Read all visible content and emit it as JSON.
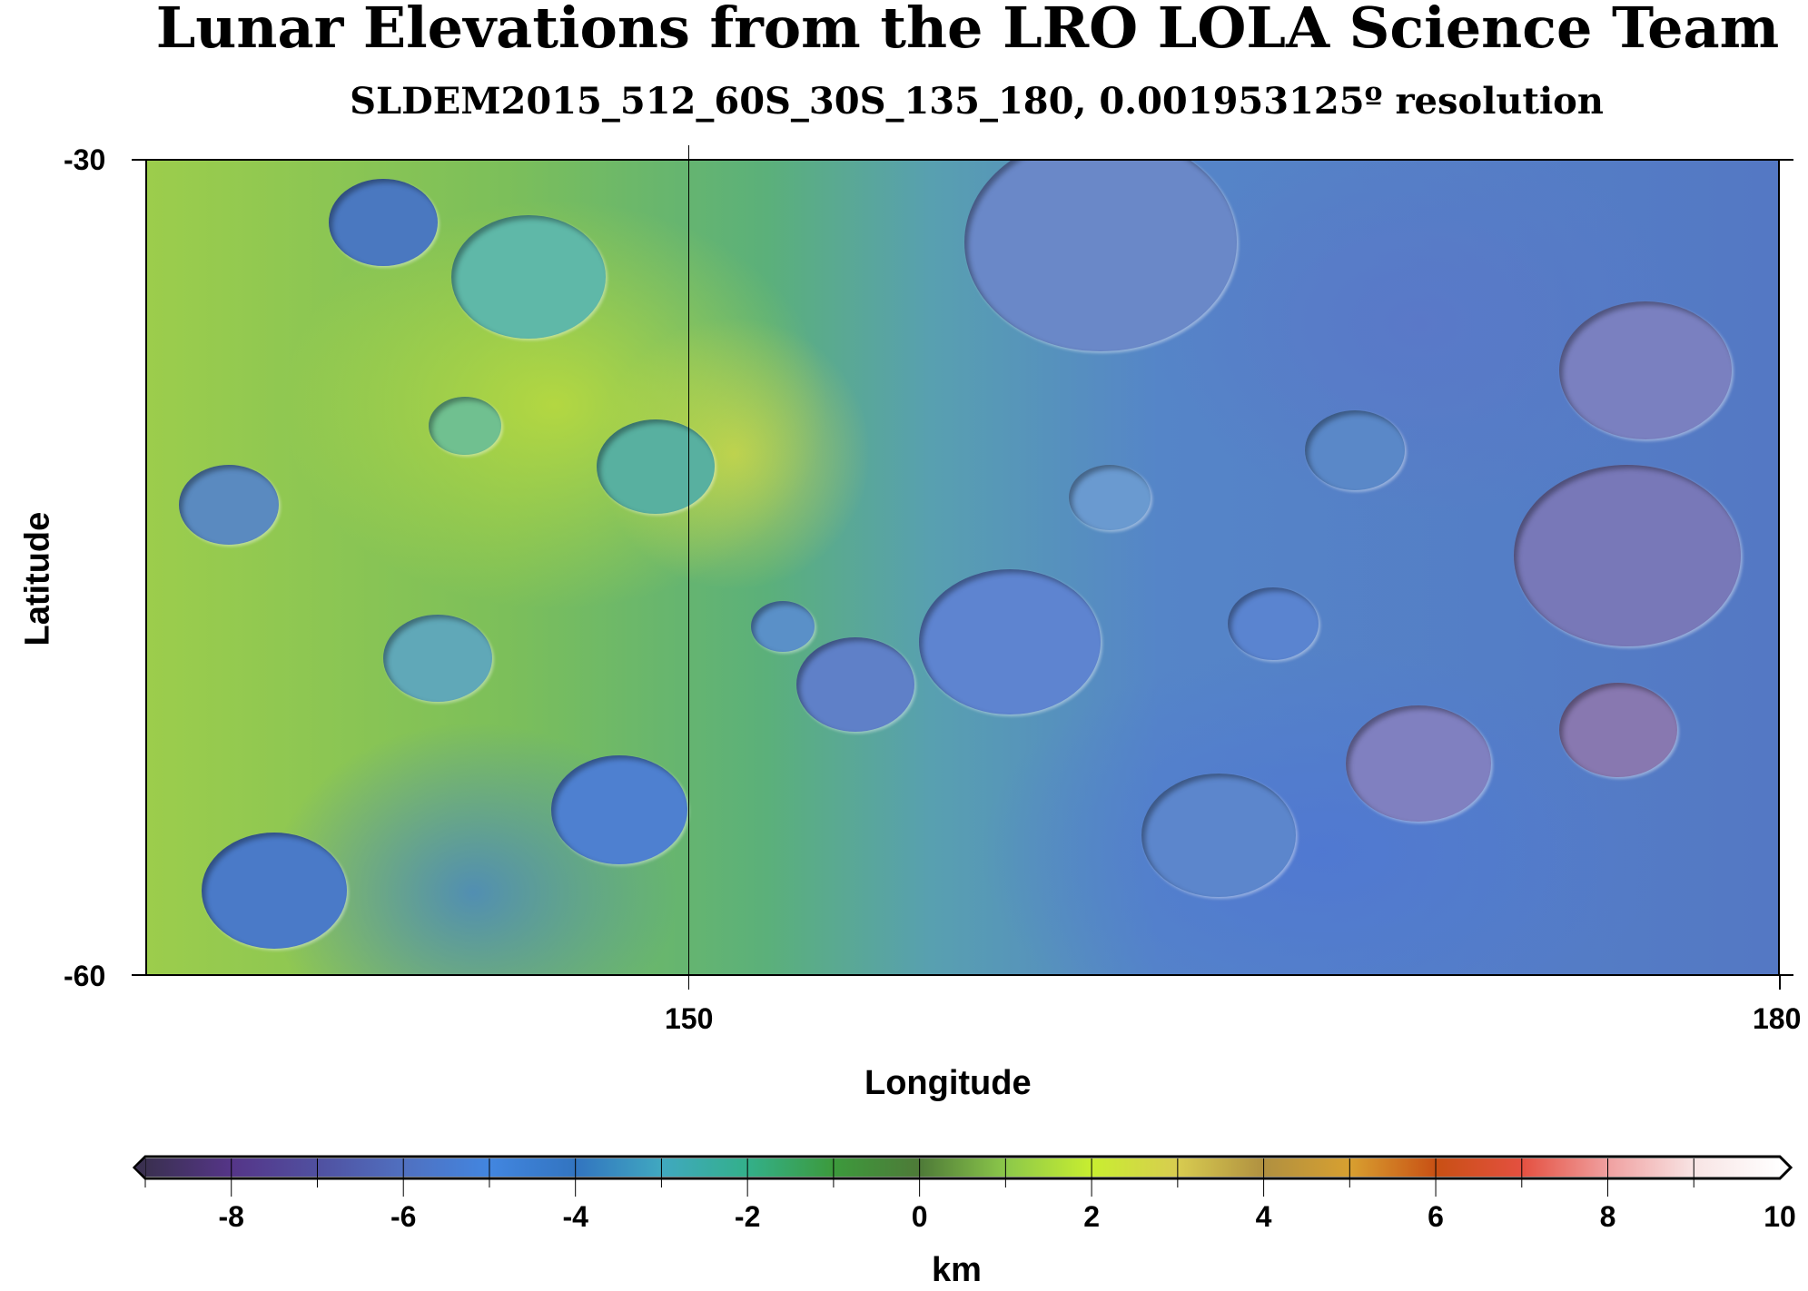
{
  "title": "Lunar Elevations from the LRO LOLA Science Team",
  "subtitle": "SLDEM2015_512_60S_30S_135_180, 0.001953125º resolution",
  "map": {
    "x_label": "Longitude",
    "y_label": "Latitude",
    "lon_range": [
      135,
      180
    ],
    "lat_range": [
      -60,
      -30
    ],
    "x_ticks": [
      "150",
      "180"
    ],
    "y_ticks": [
      "-30",
      "-60"
    ]
  },
  "colorbar": {
    "label": "km",
    "range": [
      -9,
      10
    ],
    "tick_labels": [
      "-8",
      "-6",
      "-4",
      "-2",
      "0",
      "2",
      "4",
      "6",
      "8",
      "10"
    ],
    "colors": [
      "#3a3050",
      "#553588",
      "#5050a0",
      "#5070c0",
      "#4286e0",
      "#3274c0",
      "#40a8c0",
      "#33b08a",
      "#3c9a3c",
      "#4e7a38",
      "#8cc84a",
      "#c8ee30",
      "#d8cc50",
      "#b09040",
      "#d8a030",
      "#c85014",
      "#e45040",
      "#f0a0a0",
      "#f8e4e4",
      "#ffffff"
    ]
  }
}
